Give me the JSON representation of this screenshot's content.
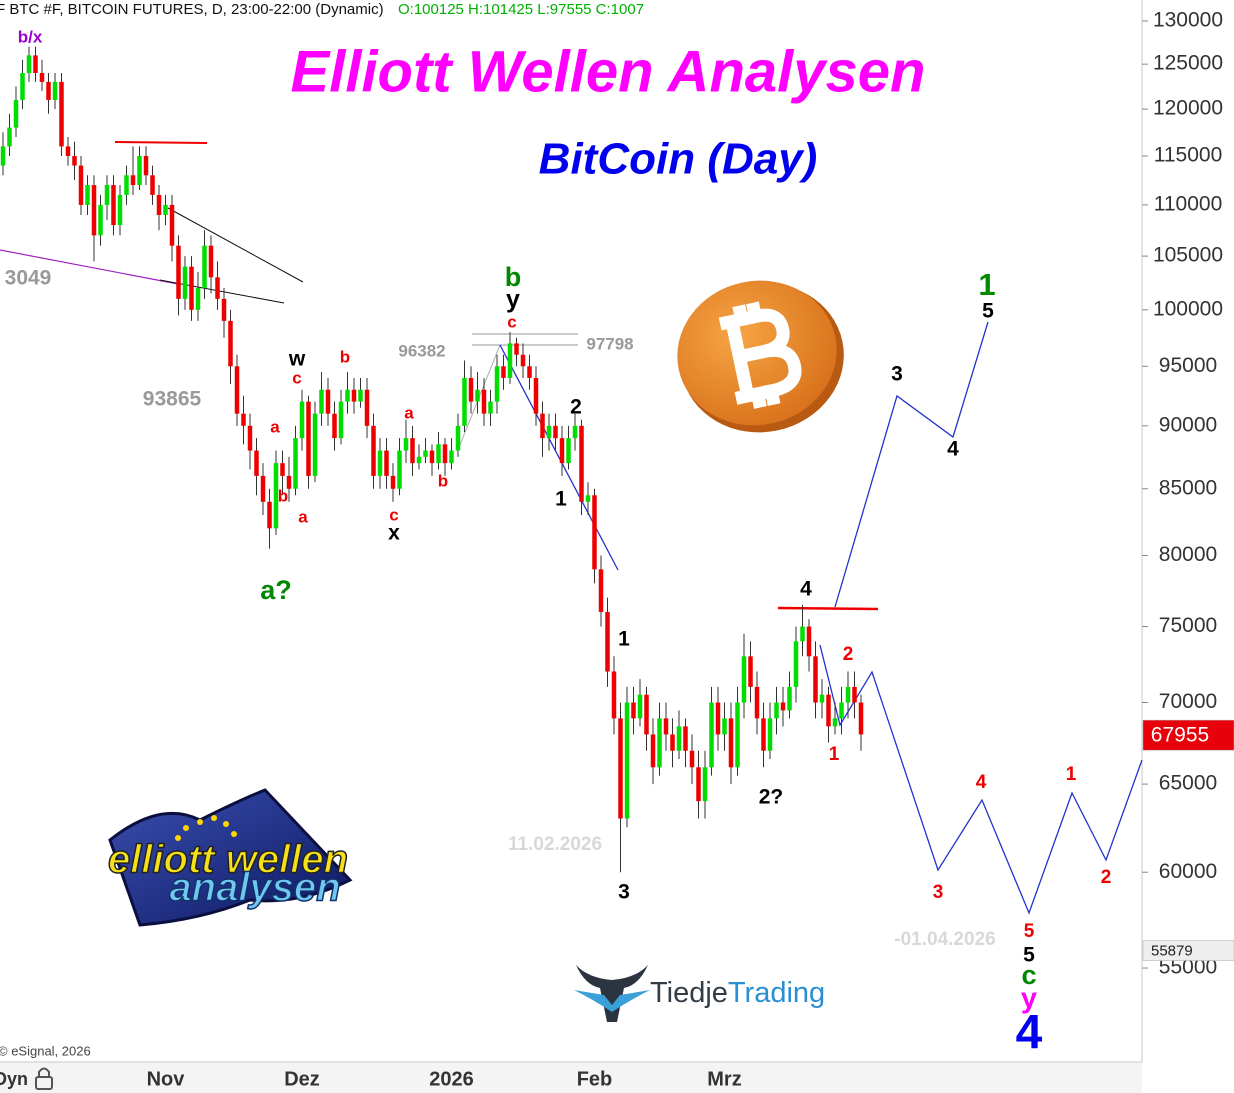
{
  "chart_data": {
    "type": "candlestick",
    "header": "F BTC #F, BITCOIN FUTURES, D, 23:00-22:00 (Dynamic)",
    "header_ohlc": "O:100125 H:101425 L:97555 C:1007",
    "title": "Elliott Wellen Analysen",
    "subtitle": "BitCoin (Day)",
    "copyright": "© eSignal, 2026",
    "axis_mode": "Dyn",
    "logo_elliott": {
      "line1": "elliott wellen",
      "line2": "analysen"
    },
    "logo_tiedje": {
      "part1": "Tiedje",
      "part2": "Trading"
    },
    "log_scale": true,
    "ylim": [
      50500,
      132500
    ],
    "yticks": [
      55000,
      60000,
      65000,
      70000,
      75000,
      80000,
      85000,
      90000,
      95000,
      100000,
      105000,
      110000,
      115000,
      120000,
      125000,
      130000
    ],
    "up_color": "#00dd00",
    "down_color": "#ee0000",
    "categories": [
      null,
      null,
      null,
      null,
      null,
      null,
      null,
      null,
      null,
      null,
      null,
      null,
      null,
      null,
      null,
      null,
      null,
      null,
      null,
      null,
      null,
      null,
      null,
      null,
      null,
      "Nov",
      null,
      null,
      null,
      null,
      null,
      null,
      null,
      null,
      null,
      null,
      null,
      null,
      null,
      null,
      null,
      null,
      null,
      null,
      null,
      null,
      "Dez",
      null,
      null,
      null,
      null,
      null,
      null,
      null,
      null,
      null,
      null,
      null,
      null,
      null,
      null,
      null,
      null,
      null,
      null,
      null,
      null,
      null,
      null,
      "2026",
      null,
      null,
      null,
      null,
      null,
      null,
      null,
      null,
      null,
      null,
      null,
      null,
      null,
      null,
      null,
      null,
      null,
      null,
      null,
      null,
      null,
      "Feb",
      null,
      null,
      null,
      null,
      null,
      null,
      null,
      null,
      null,
      null,
      null,
      null,
      null,
      null,
      null,
      null,
      null,
      null,
      null,
      "Mrz",
      null,
      null,
      null,
      null,
      null,
      null,
      null,
      null,
      null,
      null,
      null,
      null,
      null,
      null,
      null,
      null,
      null,
      null,
      null,
      null,
      null
    ],
    "candles": [
      [
        114000,
        117500,
        113000,
        116000
      ],
      [
        116000,
        119500,
        115000,
        118000
      ],
      [
        118000,
        122500,
        117000,
        121000
      ],
      [
        121000,
        125500,
        120000,
        124000
      ],
      [
        124000,
        127000,
        123000,
        126000
      ],
      [
        126000,
        127000,
        123000,
        124000
      ],
      [
        124000,
        125500,
        122000,
        123000
      ],
      [
        123000,
        124000,
        119500,
        121000
      ],
      [
        121000,
        124000,
        120000,
        123000
      ],
      [
        123000,
        124000,
        115000,
        116000
      ],
      [
        116000,
        117000,
        114000,
        115000
      ],
      [
        115000,
        116500,
        112500,
        114000
      ],
      [
        114000,
        115000,
        109000,
        110000
      ],
      [
        110000,
        113000,
        109000,
        112000
      ],
      [
        112000,
        113000,
        104500,
        107000
      ],
      [
        107000,
        111000,
        106000,
        110000
      ],
      [
        110000,
        113000,
        108500,
        112000
      ],
      [
        112000,
        113000,
        107000,
        108000
      ],
      [
        108000,
        112000,
        107000,
        111000
      ],
      [
        111000,
        114000,
        110000,
        113000
      ],
      [
        113000,
        116000,
        111000,
        112000
      ],
      [
        112000,
        116000,
        111500,
        115000
      ],
      [
        115000,
        116000,
        112000,
        113000
      ],
      [
        113000,
        114000,
        110000,
        111000
      ],
      [
        111000,
        112000,
        107500,
        109000
      ],
      [
        109000,
        111000,
        108000,
        110000
      ],
      [
        110000,
        111000,
        104500,
        106000
      ],
      [
        106000,
        107000,
        99500,
        101000
      ],
      [
        101000,
        105000,
        100000,
        104000
      ],
      [
        104000,
        105000,
        99000,
        100000
      ],
      [
        100000,
        103500,
        99000,
        102000
      ],
      [
        102000,
        107500,
        101000,
        106000
      ],
      [
        106000,
        107000,
        101500,
        103000
      ],
      [
        103000,
        104500,
        100000,
        101000
      ],
      [
        101000,
        102000,
        97500,
        99000
      ],
      [
        99000,
        100000,
        93500,
        95000
      ],
      [
        95000,
        96000,
        90000,
        91000
      ],
      [
        91000,
        92500,
        88500,
        90000
      ],
      [
        90000,
        91000,
        86500,
        88000
      ],
      [
        88000,
        89000,
        84500,
        86000
      ],
      [
        86000,
        87000,
        83000,
        84000
      ],
      [
        84000,
        85000,
        80500,
        82000
      ],
      [
        82000,
        88000,
        81500,
        87000
      ],
      [
        87000,
        88000,
        84500,
        86000
      ],
      [
        86000,
        87500,
        84000,
        85000
      ],
      [
        85000,
        90000,
        84500,
        89000
      ],
      [
        89000,
        93000,
        88000,
        92000
      ],
      [
        92000,
        92500,
        85000,
        86000
      ],
      [
        86000,
        92000,
        85500,
        91000
      ],
      [
        91000,
        94500,
        90000,
        93000
      ],
      [
        93000,
        94000,
        90000,
        91000
      ],
      [
        91000,
        92000,
        88000,
        89000
      ],
      [
        89000,
        93000,
        88500,
        92000
      ],
      [
        92000,
        94500,
        91000,
        93000
      ],
      [
        93000,
        94000,
        91000,
        92000
      ],
      [
        92000,
        94000,
        91500,
        93000
      ],
      [
        93000,
        94000,
        89000,
        90000
      ],
      [
        90000,
        91000,
        85000,
        86000
      ],
      [
        86000,
        89000,
        85000,
        88000
      ],
      [
        88000,
        89000,
        85000,
        86000
      ],
      [
        86000,
        87000,
        84000,
        85000
      ],
      [
        85000,
        89000,
        84500,
        88000
      ],
      [
        88000,
        90500,
        87000,
        89000
      ],
      [
        89000,
        90000,
        86000,
        87000
      ],
      [
        87000,
        88500,
        86500,
        87500
      ],
      [
        87500,
        89000,
        87000,
        88000
      ],
      [
        88000,
        88500,
        86000,
        87000
      ],
      [
        87000,
        89500,
        86500,
        88500
      ],
      [
        88500,
        89000,
        86000,
        87000
      ],
      [
        87000,
        89000,
        86500,
        88000
      ],
      [
        88000,
        91000,
        87500,
        90000
      ],
      [
        90000,
        95500,
        89500,
        94000
      ],
      [
        94000,
        95000,
        91000,
        92000
      ],
      [
        92000,
        94500,
        91000,
        93000
      ],
      [
        93000,
        94000,
        90000,
        91000
      ],
      [
        91000,
        93000,
        90000,
        92000
      ],
      [
        92000,
        96000,
        91000,
        95000
      ],
      [
        95000,
        96000,
        93000,
        94000
      ],
      [
        94000,
        98000,
        93500,
        97000
      ],
      [
        97000,
        97500,
        95000,
        96000
      ],
      [
        96000,
        97000,
        94000,
        95000
      ],
      [
        95000,
        96000,
        93000,
        94000
      ],
      [
        94000,
        95000,
        90000,
        91000
      ],
      [
        91000,
        92000,
        87500,
        89000
      ],
      [
        89000,
        91000,
        88000,
        90000
      ],
      [
        90000,
        91000,
        88000,
        89000
      ],
      [
        89000,
        90000,
        86000,
        87000
      ],
      [
        87000,
        90000,
        86500,
        89000
      ],
      [
        89000,
        91000,
        88000,
        90000
      ],
      [
        90000,
        90500,
        83000,
        84000
      ],
      [
        84000,
        85500,
        83000,
        84500
      ],
      [
        84500,
        85000,
        78000,
        79000
      ],
      [
        79000,
        80000,
        75000,
        76000
      ],
      [
        76000,
        77000,
        71000,
        72000
      ],
      [
        72000,
        73000,
        68000,
        69000
      ],
      [
        69000,
        70000,
        60000,
        63000
      ],
      [
        63000,
        71000,
        62500,
        70000
      ],
      [
        70000,
        71000,
        68000,
        69000
      ],
      [
        69000,
        71500,
        68500,
        70500
      ],
      [
        70500,
        71000,
        67000,
        68000
      ],
      [
        68000,
        69000,
        65000,
        66000
      ],
      [
        66000,
        70000,
        65500,
        69000
      ],
      [
        69000,
        70000,
        67000,
        68000
      ],
      [
        68000,
        69000,
        66000,
        67000
      ],
      [
        67000,
        69500,
        66500,
        68500
      ],
      [
        68500,
        69000,
        66000,
        67000
      ],
      [
        67000,
        68000,
        65000,
        66000
      ],
      [
        66000,
        67000,
        63000,
        64000
      ],
      [
        64000,
        67000,
        63000,
        66000
      ],
      [
        66000,
        71000,
        65500,
        70000
      ],
      [
        70000,
        71000,
        67000,
        68000
      ],
      [
        68000,
        70000,
        67000,
        69000
      ],
      [
        69000,
        70000,
        65000,
        66000
      ],
      [
        66000,
        71000,
        65500,
        70000
      ],
      [
        70000,
        74500,
        69000,
        73000
      ],
      [
        73000,
        74000,
        70000,
        71000
      ],
      [
        71000,
        72000,
        68000,
        69000
      ],
      [
        69000,
        70000,
        66000,
        67000
      ],
      [
        67000,
        70000,
        66500,
        69000
      ],
      [
        69000,
        71000,
        68000,
        70000
      ],
      [
        70000,
        71000,
        68500,
        69500
      ],
      [
        69500,
        72000,
        69000,
        71000
      ],
      [
        71000,
        75000,
        70000,
        74000
      ],
      [
        74000,
        76500,
        73000,
        75000
      ],
      [
        75000,
        75500,
        72000,
        73000
      ],
      [
        73000,
        74000,
        69000,
        70000
      ],
      [
        70000,
        71500,
        69000,
        70500
      ],
      [
        70500,
        71000,
        67500,
        68500
      ],
      [
        68500,
        70000,
        68000,
        69000
      ],
      [
        69000,
        71000,
        68000,
        70000
      ],
      [
        70000,
        72000,
        69000,
        71000
      ],
      [
        71000,
        72000,
        69000,
        70000
      ],
      [
        70000,
        70500,
        67000,
        68000
      ]
    ],
    "price_tags": [
      {
        "value": 67955,
        "color": "#e8000b",
        "text_color": "#ffffff"
      },
      {
        "value": 55879,
        "color": "#eeeeee",
        "text_color": "#222222"
      }
    ],
    "annotations": [
      {
        "text": "b/x",
        "color": "#9900cc"
      },
      {
        "text": "3049",
        "color": "#999999"
      },
      {
        "text": "93865",
        "color": "#999999"
      },
      {
        "text": "96382",
        "color": "#999999"
      },
      {
        "text": "97798",
        "color": "#999999"
      },
      {
        "text": "w",
        "color": "#000000"
      },
      {
        "text": "c",
        "color": "#ee0000"
      },
      {
        "text": "b",
        "color": "#ee0000"
      },
      {
        "text": "a",
        "color": "#ee0000"
      },
      {
        "text": "b",
        "color": "#ee0000"
      },
      {
        "text": "a",
        "color": "#ee0000"
      },
      {
        "text": "a",
        "color": "#ee0000"
      },
      {
        "text": "b",
        "color": "#ee0000"
      },
      {
        "text": "c",
        "color": "#ee0000"
      },
      {
        "text": "x",
        "color": "#000000"
      },
      {
        "text": "b",
        "color": "#008800"
      },
      {
        "text": "y",
        "color": "#000000"
      },
      {
        "text": "c",
        "color": "#ee0000"
      },
      {
        "text": "2",
        "color": "#000000"
      },
      {
        "text": "1",
        "color": "#000000"
      },
      {
        "text": "a?",
        "color": "#008800"
      },
      {
        "text": "1",
        "color": "#000000"
      },
      {
        "text": "3",
        "color": "#000000"
      },
      {
        "text": "11.02.2026",
        "color": "#d8d8d8"
      },
      {
        "text": "4",
        "color": "#000000"
      },
      {
        "text": "2",
        "color": "#ee0000"
      },
      {
        "text": "1",
        "color": "#ee0000"
      },
      {
        "text": "2?",
        "color": "#000000"
      },
      {
        "text": "1",
        "color": "#008800"
      },
      {
        "text": "5",
        "color": "#000000"
      },
      {
        "text": "3",
        "color": "#000000"
      },
      {
        "text": "4",
        "color": "#000000"
      },
      {
        "text": "4",
        "color": "#ee0000"
      },
      {
        "text": "1",
        "color": "#ee0000"
      },
      {
        "text": "3",
        "color": "#ee0000"
      },
      {
        "text": "2",
        "color": "#ee0000"
      },
      {
        "text": "-01.04.2026",
        "color": "#d8d8d8"
      },
      {
        "text": "5",
        "color": "#ee0000"
      },
      {
        "text": "5",
        "color": "#000000"
      },
      {
        "text": "c",
        "color": "#008800"
      },
      {
        "text": "y",
        "color": "#ff00ff"
      },
      {
        "text": "4",
        "color": "#0000ee"
      }
    ]
  }
}
